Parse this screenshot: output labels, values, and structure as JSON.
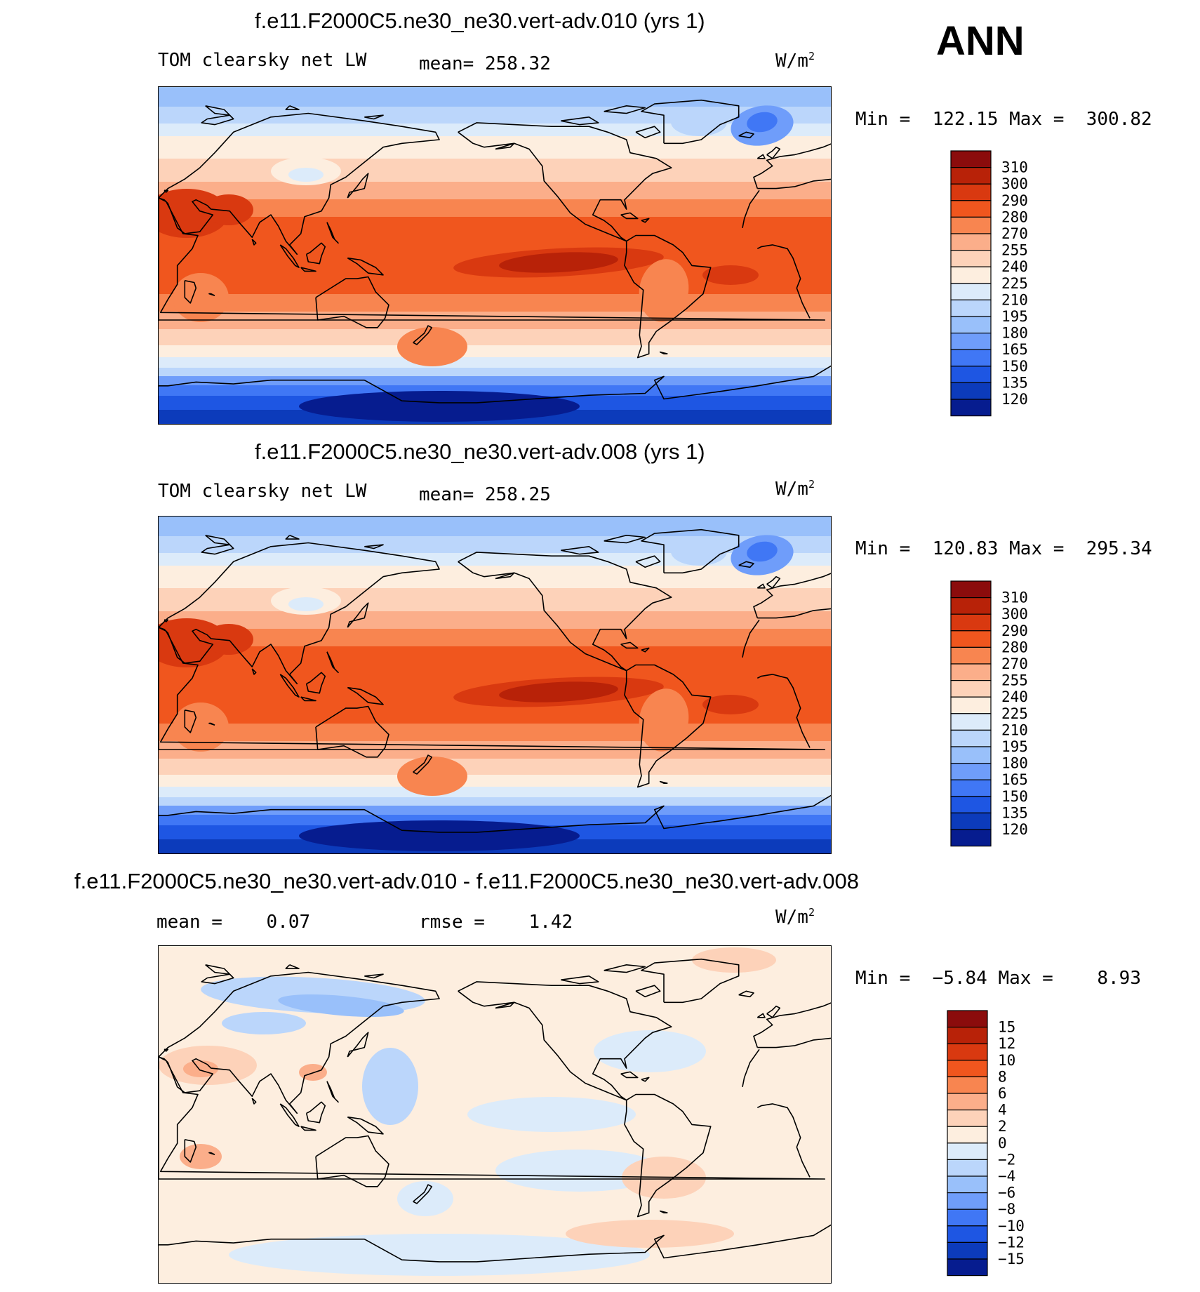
{
  "season": "ANN",
  "units": "W/m",
  "units_sup": "2",
  "land_color": "#000000",
  "chart_data": [
    {
      "type": "heatmap",
      "title": "f.e11.F2000C5.ne30_ne30.vert-adv.010 (yrs 1)",
      "variable": "TOM clearsky net LW",
      "mean_label": "mean=",
      "mean": "258.32",
      "min": "122.15",
      "max": "300.82",
      "minmax_text": "Min =  122.15 Max =  300.82",
      "levels": [
        "310",
        "300",
        "290",
        "280",
        "270",
        "255",
        "240",
        "225",
        "210",
        "195",
        "180",
        "165",
        "150",
        "135",
        "120"
      ],
      "colors": [
        "#8b0c0c",
        "#b82208",
        "#d93910",
        "#f0561e",
        "#f88550",
        "#fbae8a",
        "#fdd2b9",
        "#fdeedf",
        "#dcebfa",
        "#bbd6fb",
        "#99c0fa",
        "#6f9dfa",
        "#4077f5",
        "#1e56e3",
        "#0c3bbb",
        "#061c8f"
      ]
    },
    {
      "type": "heatmap",
      "title": "f.e11.F2000C5.ne30_ne30.vert-adv.008 (yrs 1)",
      "variable": "TOM clearsky net LW",
      "mean_label": "mean=",
      "mean": "258.25",
      "min": "120.83",
      "max": "295.34",
      "minmax_text": "Min =  120.83 Max =  295.34",
      "levels": [
        "310",
        "300",
        "290",
        "280",
        "270",
        "255",
        "240",
        "225",
        "210",
        "195",
        "180",
        "165",
        "150",
        "135",
        "120"
      ],
      "colors": [
        "#8b0c0c",
        "#b82208",
        "#d93910",
        "#f0561e",
        "#f88550",
        "#fbae8a",
        "#fdd2b9",
        "#fdeedf",
        "#dcebfa",
        "#bbd6fb",
        "#99c0fa",
        "#6f9dfa",
        "#4077f5",
        "#1e56e3",
        "#0c3bbb",
        "#061c8f"
      ]
    },
    {
      "type": "heatmap",
      "title": "f.e11.F2000C5.ne30_ne30.vert-adv.010 - f.e11.F2000C5.ne30_ne30.vert-adv.008",
      "mean_label": "mean =",
      "mean": "0.07",
      "rmse_label": "rmse =",
      "rmse": "1.42",
      "min": "−5.84",
      "max": "8.93",
      "minmax_text": "Min =  −5.84 Max =    8.93",
      "levels": [
        "15",
        "12",
        "10",
        "8",
        "6",
        "4",
        "2",
        "0",
        "−2",
        "−4",
        "−6",
        "−8",
        "−10",
        "−12",
        "−15"
      ],
      "colors": [
        "#8b0c0c",
        "#b82208",
        "#d93910",
        "#f0561e",
        "#f88550",
        "#fbae8a",
        "#fdd2b9",
        "#fdeedf",
        "#dcebfa",
        "#bbd6fb",
        "#99c0fa",
        "#6f9dfa",
        "#4077f5",
        "#1e56e3",
        "#0c3bbb",
        "#061c8f"
      ]
    }
  ]
}
